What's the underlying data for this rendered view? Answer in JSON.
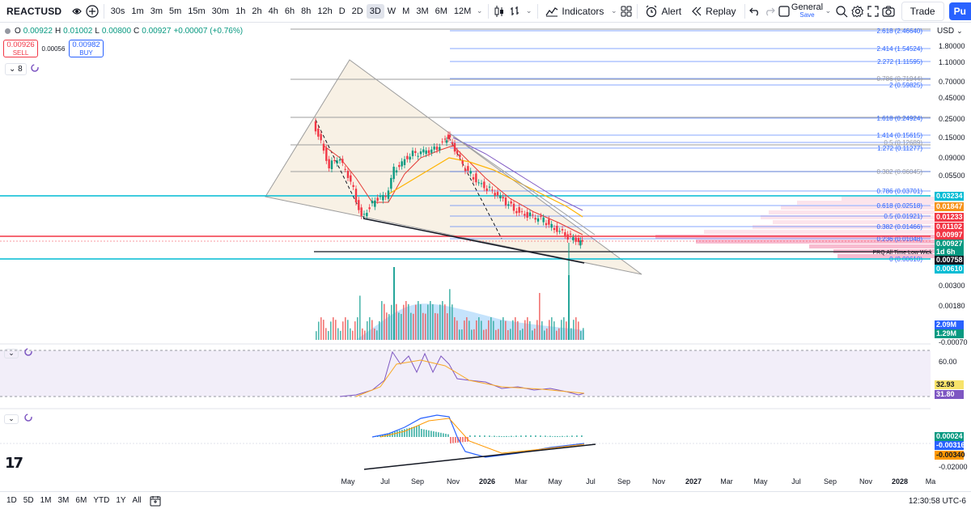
{
  "toolbar": {
    "symbol": "REACTUSD",
    "intervals": [
      "30s",
      "1m",
      "3m",
      "5m",
      "15m",
      "30m",
      "1h",
      "2h",
      "4h",
      "6h",
      "8h",
      "12h",
      "D",
      "2D",
      "3D",
      "W",
      "M",
      "3M",
      "6M",
      "12M"
    ],
    "active_interval": "3D",
    "indicators_label": "Indicators",
    "alert_label": "Alert",
    "replay_label": "Replay",
    "layout_name": "General",
    "layout_status": "Save",
    "trade_label": "Trade",
    "publish_label": "Pu"
  },
  "legend": {
    "o_label": "O",
    "o": "0.00922",
    "h_label": "H",
    "h": "0.01002",
    "l_label": "L",
    "l": "0.00800",
    "c_label": "C",
    "c": "0.00927",
    "change": "+0.00007 (+0.76%)",
    "sell_price": "0.00926",
    "sell_label": "SELL",
    "spread": "0.00056",
    "buy_price": "0.00982",
    "buy_label": "BUY",
    "indicator_count": "8"
  },
  "price_scale": {
    "currency": "USD",
    "ticks": [
      "1.80000",
      "1.10000",
      "0.70000",
      "0.45000",
      "0.25000",
      "0.15000",
      "0.09000",
      "0.05500",
      "0.00300",
      "0.00180",
      "-0.00070"
    ],
    "labels": [
      {
        "text": "0.03234",
        "color": "#00bcd4"
      },
      {
        "text": "0.01847",
        "color": "#f7931a"
      },
      {
        "text": "0.01233",
        "color": "#f23645"
      },
      {
        "text": "0.01102",
        "color": "#f23645"
      },
      {
        "text": "0.00997",
        "color": "#f23645"
      },
      {
        "text": "0.00927",
        "color": "#089981"
      },
      {
        "text": "1d 6h",
        "color": "#089981"
      },
      {
        "text": "0.00758",
        "color": "#131722"
      },
      {
        "text": "0.00610",
        "color": "#00bcd4"
      }
    ],
    "volume_labels": [
      {
        "text": "2.09M",
        "color": "#2962ff"
      },
      {
        "text": "1.29M",
        "color": "#089981"
      }
    ],
    "rsi_ticks": [
      "60.00"
    ],
    "rsi_labels": [
      {
        "text": "32.93",
        "color": "#f7e36a"
      },
      {
        "text": "31.80",
        "color": "#7e57c2"
      }
    ],
    "macd_labels": [
      {
        "text": "0.00024",
        "color": "#089981"
      },
      {
        "text": "-0.00316",
        "color": "#2962ff"
      },
      {
        "text": "-0.00340",
        "color": "#ff9800"
      }
    ],
    "macd_ticks": [
      "-0.02000"
    ]
  },
  "fib_levels": [
    {
      "text": "2.618 (2.46640)",
      "tick": "1.80000"
    },
    {
      "text": "2.414 (1.54524)",
      "tick": ""
    },
    {
      "text": "2.272 (1.11595)",
      "tick": "1.10000"
    },
    {
      "text": "0.786 (0.71944)",
      "tick": "0.70000"
    },
    {
      "text": "2 (0.59825)",
      "tick": ""
    },
    {
      "text": "1.618 (0.24924)",
      "tick": "0.25000"
    },
    {
      "text": "1.414 (0.15615)",
      "tick": "0.15000"
    },
    {
      "text": "0.5 (0.12689)",
      "tick": ""
    },
    {
      "text": "1.272 (0.11277)",
      "tick": ""
    },
    {
      "text": "0.382 (0.06045)",
      "tick": ""
    },
    {
      "text": "0.786 (0.03701)",
      "tick": ""
    },
    {
      "text": "0.618 (0.02518)",
      "tick": ""
    },
    {
      "text": "0.5 (0.01921)",
      "tick": ""
    },
    {
      "text": "0.382 (0.01466)",
      "tick": ""
    },
    {
      "text": "0.236 (0.01048)",
      "tick": ""
    },
    {
      "text": "0 (0.00610)",
      "tick": ""
    }
  ],
  "annotations": {
    "atl_label": "PRQ All Time Low Wick"
  },
  "time_axis": [
    "May",
    "Jul",
    "Sep",
    "Nov",
    "2026",
    "Mar",
    "May",
    "Jul",
    "Sep",
    "Nov",
    "2027",
    "Mar",
    "May",
    "Jul",
    "Sep",
    "Nov",
    "2028",
    "Ma"
  ],
  "bottom": {
    "ranges": [
      "1D",
      "5D",
      "1M",
      "3M",
      "6M",
      "YTD",
      "1Y",
      "All"
    ],
    "clock": "12:30:58 UTC-6"
  },
  "colors": {
    "up": "#089981",
    "down": "#f23645",
    "cyan": "#00bcd4",
    "rsi_band": "#7e57c2",
    "fib_blue": "#2962ff"
  }
}
